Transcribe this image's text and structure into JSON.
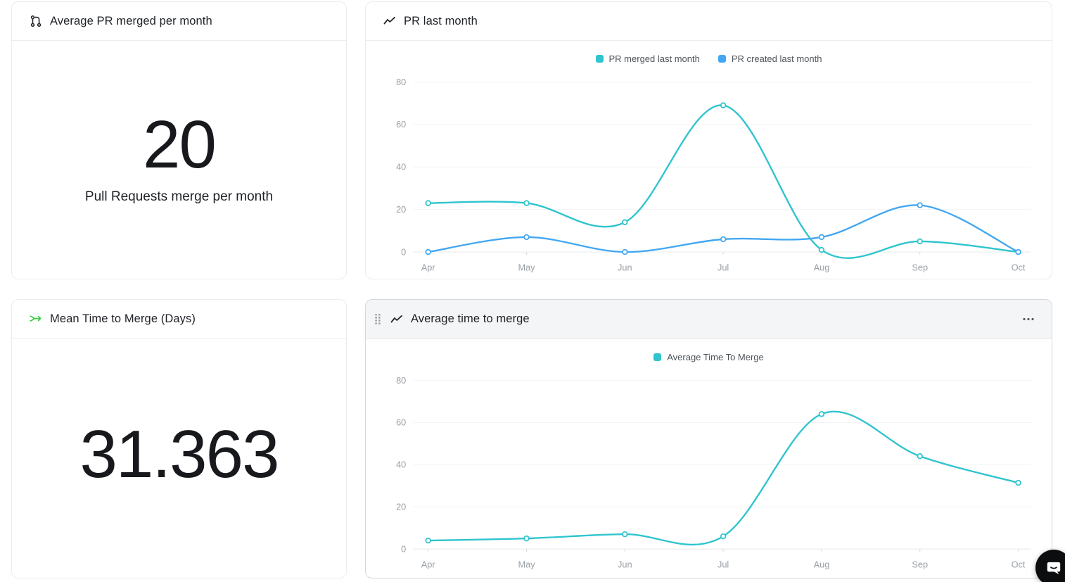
{
  "colors": {
    "teal": "#2fc4ce",
    "blue": "#42a7f2",
    "green": "#3ecb44",
    "title_text": "#1e2126",
    "axis_text": "#9aa0a6",
    "grid_line": "#f2f3f4",
    "card_border": "#ebecee",
    "selected_card_border": "#d5d7dc",
    "header_bar_bg": "#f4f5f6",
    "chat_button_bg": "#0c0d0f"
  },
  "cards": {
    "avg_pr_merged": {
      "title": "Average PR merged per month",
      "value": "20",
      "subtitle": "Pull Requests merge per month"
    },
    "pr_last_month": {
      "title": "PR last month"
    },
    "mean_time_to_merge": {
      "title": "Mean Time to Merge (Days)",
      "value": "31.363"
    },
    "avg_time_to_merge": {
      "title": "Average time to merge",
      "menu_icon": "ellipsis"
    }
  },
  "chart_data": [
    {
      "type": "line",
      "title": "PR last month",
      "categories": [
        "Apr",
        "May",
        "Jun",
        "Jul",
        "Aug",
        "Sep",
        "Oct"
      ],
      "series": [
        {
          "name": "PR merged last month",
          "color": "#2fc4ce",
          "values": [
            23,
            23,
            14,
            69,
            1,
            5,
            0
          ]
        },
        {
          "name": "PR created last month",
          "color": "#42a7f2",
          "values": [
            0,
            7,
            0,
            6,
            7,
            22,
            0
          ]
        }
      ],
      "yticks": [
        0,
        20,
        40,
        60,
        80
      ],
      "ylim": [
        0,
        80
      ],
      "grid": true,
      "legend_position": "top"
    },
    {
      "type": "line",
      "title": "Average time to merge",
      "categories": [
        "Apr",
        "May",
        "Jun",
        "Jul",
        "Aug",
        "Sep",
        "Oct"
      ],
      "series": [
        {
          "name": "Average Time To Merge",
          "color": "#2fc4ce",
          "values": [
            4,
            5,
            7,
            6,
            64,
            44,
            31.4
          ]
        }
      ],
      "yticks": [
        0,
        20,
        40,
        60,
        80
      ],
      "ylim": [
        0,
        80
      ],
      "grid": true,
      "legend_position": "top"
    }
  ]
}
